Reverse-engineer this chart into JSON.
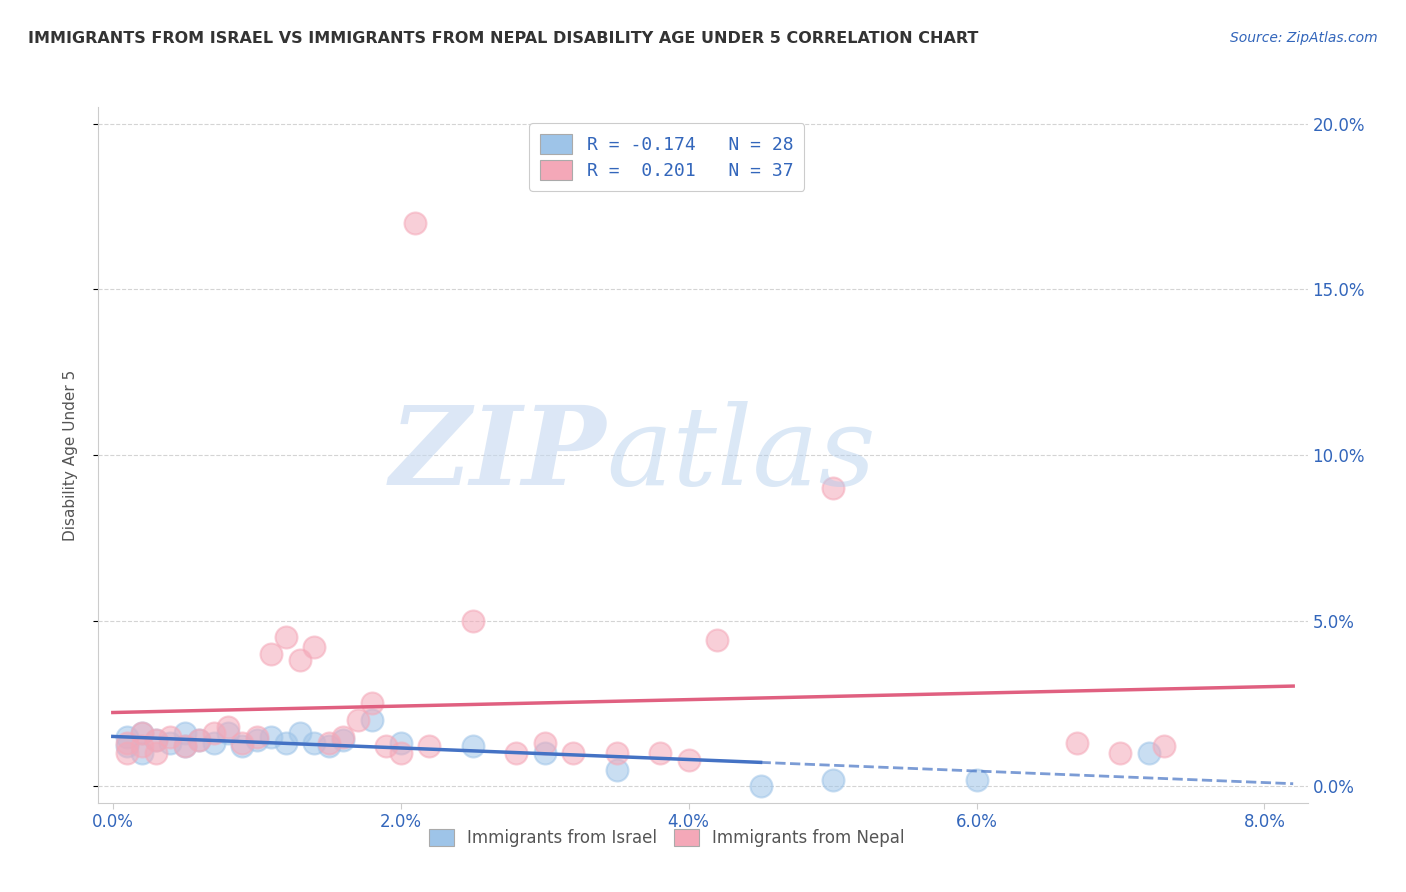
{
  "title": "IMMIGRANTS FROM ISRAEL VS IMMIGRANTS FROM NEPAL DISABILITY AGE UNDER 5 CORRELATION CHART",
  "source": "Source: ZipAtlas.com",
  "ylabel_label": "Disability Age Under 5",
  "xlim": [
    -0.001,
    0.083
  ],
  "ylim": [
    -0.005,
    0.205
  ],
  "legend1_r": "-0.174",
  "legend1_n": "28",
  "legend2_r": "0.201",
  "legend2_n": "37",
  "israel_color": "#9ec4e8",
  "israel_line_color": "#4472c4",
  "nepal_color": "#f4a8b8",
  "nepal_line_color": "#e06080",
  "israel_x": [
    0.001,
    0.001,
    0.002,
    0.002,
    0.003,
    0.004,
    0.005,
    0.005,
    0.006,
    0.007,
    0.008,
    0.009,
    0.01,
    0.011,
    0.012,
    0.013,
    0.014,
    0.015,
    0.016,
    0.018,
    0.02,
    0.025,
    0.03,
    0.035,
    0.045,
    0.05,
    0.06,
    0.072
  ],
  "israel_y": [
    0.015,
    0.012,
    0.01,
    0.016,
    0.014,
    0.013,
    0.016,
    0.012,
    0.014,
    0.013,
    0.016,
    0.012,
    0.014,
    0.015,
    0.013,
    0.016,
    0.013,
    0.012,
    0.014,
    0.02,
    0.013,
    0.012,
    0.01,
    0.005,
    0.0,
    0.002,
    0.002,
    0.01
  ],
  "nepal_x": [
    0.001,
    0.001,
    0.002,
    0.002,
    0.003,
    0.003,
    0.004,
    0.005,
    0.006,
    0.007,
    0.008,
    0.009,
    0.01,
    0.011,
    0.012,
    0.013,
    0.014,
    0.015,
    0.016,
    0.017,
    0.018,
    0.019,
    0.02,
    0.021,
    0.022,
    0.025,
    0.028,
    0.03,
    0.032,
    0.035,
    0.038,
    0.04,
    0.042,
    0.05,
    0.067,
    0.07,
    0.073
  ],
  "nepal_y": [
    0.01,
    0.013,
    0.012,
    0.016,
    0.01,
    0.014,
    0.015,
    0.012,
    0.014,
    0.016,
    0.018,
    0.013,
    0.015,
    0.04,
    0.045,
    0.038,
    0.042,
    0.013,
    0.015,
    0.02,
    0.025,
    0.012,
    0.01,
    0.17,
    0.012,
    0.05,
    0.01,
    0.013,
    0.01,
    0.01,
    0.01,
    0.008,
    0.044,
    0.09,
    0.013,
    0.01,
    0.012
  ],
  "background_color": "#ffffff",
  "grid_color": "#d0d0d0",
  "watermark_zip_color": "#c5d8f0",
  "watermark_atlas_color": "#b0ccec"
}
